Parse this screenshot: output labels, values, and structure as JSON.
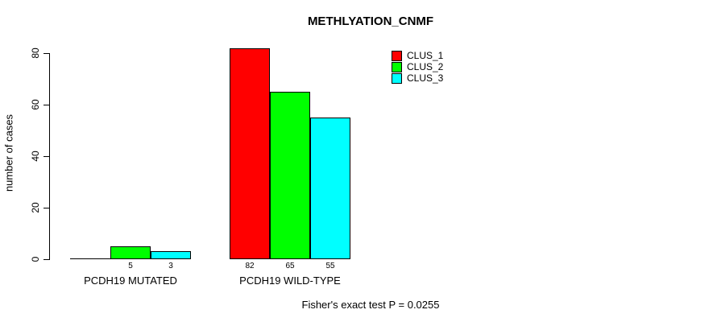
{
  "chart_data": {
    "type": "bar",
    "title": "METHLYATION_CNMF",
    "ylabel": "number of cases",
    "xlabel": "",
    "annotation": "Fisher's exact test P = 0.0255",
    "categories": [
      "PCDH19 MUTATED",
      "PCDH19 WILD-TYPE"
    ],
    "series": [
      {
        "name": "CLUS_1",
        "color": "#ff0000",
        "values": [
          0,
          82
        ]
      },
      {
        "name": "CLUS_2",
        "color": "#00ff00",
        "values": [
          5,
          65
        ]
      },
      {
        "name": "CLUS_3",
        "color": "#00ffff",
        "values": [
          3,
          55
        ]
      }
    ],
    "bar_value_labels": [
      [
        "",
        "5",
        "3"
      ],
      [
        "82",
        "65",
        "55"
      ]
    ],
    "yticks": [
      0,
      20,
      40,
      60,
      80
    ],
    "ylim": [
      0,
      80
    ],
    "grid": false,
    "legend_position": "top-right",
    "bar_border_color": "#000000",
    "background_color": "#ffffff"
  }
}
